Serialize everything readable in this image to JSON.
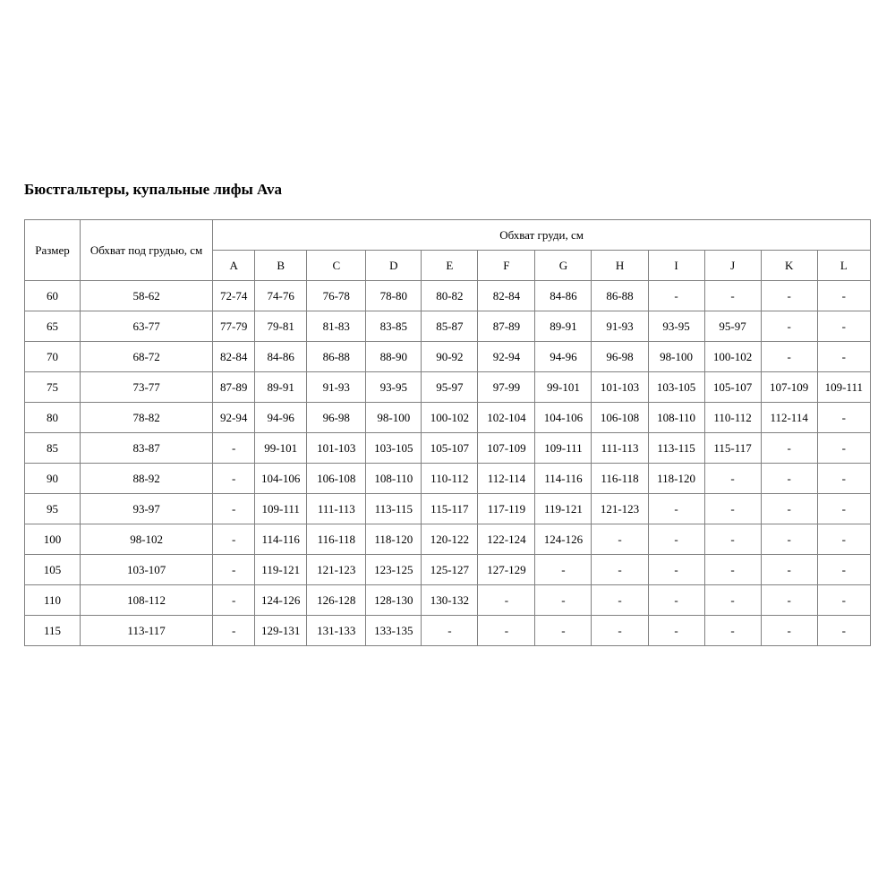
{
  "page": {
    "title": "Бюстгальтеры, купальные лифы Ava"
  },
  "table": {
    "headers": {
      "size": "Размер",
      "underbust": "Обхват под грудью, см",
      "bust_group": "Обхват груди, см",
      "cups": [
        "A",
        "B",
        "C",
        "D",
        "E",
        "F",
        "G",
        "H",
        "I",
        "J",
        "K",
        "L"
      ]
    },
    "rows": [
      {
        "size": "60",
        "underbust": "58-62",
        "cups": [
          "72-74",
          "74-76",
          "76-78",
          "78-80",
          "80-82",
          "82-84",
          "84-86",
          "86-88",
          "-",
          "-",
          "-",
          "-"
        ]
      },
      {
        "size": "65",
        "underbust": "63-77",
        "cups": [
          "77-79",
          "79-81",
          "81-83",
          "83-85",
          "85-87",
          "87-89",
          "89-91",
          "91-93",
          "93-95",
          "95-97",
          "-",
          "-"
        ]
      },
      {
        "size": "70",
        "underbust": "68-72",
        "cups": [
          "82-84",
          "84-86",
          "86-88",
          "88-90",
          "90-92",
          "92-94",
          "94-96",
          "96-98",
          "98-100",
          "100-102",
          "-",
          "-"
        ]
      },
      {
        "size": "75",
        "underbust": "73-77",
        "cups": [
          "87-89",
          "89-91",
          "91-93",
          "93-95",
          "95-97",
          "97-99",
          "99-101",
          "101-103",
          "103-105",
          "105-107",
          "107-109",
          "109-111"
        ]
      },
      {
        "size": "80",
        "underbust": "78-82",
        "cups": [
          "92-94",
          "94-96",
          "96-98",
          "98-100",
          "100-102",
          "102-104",
          "104-106",
          "106-108",
          "108-110",
          "110-112",
          "112-114",
          "-"
        ]
      },
      {
        "size": "85",
        "underbust": "83-87",
        "cups": [
          "-",
          "99-101",
          "101-103",
          "103-105",
          "105-107",
          "107-109",
          "109-111",
          "111-113",
          "113-115",
          "115-117",
          "-",
          "-"
        ]
      },
      {
        "size": "90",
        "underbust": "88-92",
        "cups": [
          "-",
          "104-106",
          "106-108",
          "108-110",
          "110-112",
          "112-114",
          "114-116",
          "116-118",
          "118-120",
          "-",
          "-",
          "-"
        ]
      },
      {
        "size": "95",
        "underbust": "93-97",
        "cups": [
          "-",
          "109-111",
          "111-113",
          "113-115",
          "115-117",
          "117-119",
          "119-121",
          "121-123",
          "-",
          "-",
          "-",
          "-"
        ]
      },
      {
        "size": "100",
        "underbust": "98-102",
        "cups": [
          "-",
          "114-116",
          "116-118",
          "118-120",
          "120-122",
          "122-124",
          "124-126",
          "-",
          "-",
          "-",
          "-",
          "-"
        ]
      },
      {
        "size": "105",
        "underbust": "103-107",
        "cups": [
          "-",
          "119-121",
          "121-123",
          "123-125",
          "125-127",
          "127-129",
          "-",
          "-",
          "-",
          "-",
          "-",
          "-"
        ]
      },
      {
        "size": "110",
        "underbust": "108-112",
        "cups": [
          "-",
          "124-126",
          "126-128",
          "128-130",
          "130-132",
          "-",
          "-",
          "-",
          "-",
          "-",
          "-",
          "-"
        ]
      },
      {
        "size": "115",
        "underbust": "113-117",
        "cups": [
          "-",
          "129-131",
          "131-133",
          "133-135",
          "-",
          "-",
          "-",
          "-",
          "-",
          "-",
          "-",
          "-"
        ]
      }
    ]
  },
  "colors": {
    "border": "#808080",
    "text": "#000000",
    "background": "#ffffff"
  }
}
